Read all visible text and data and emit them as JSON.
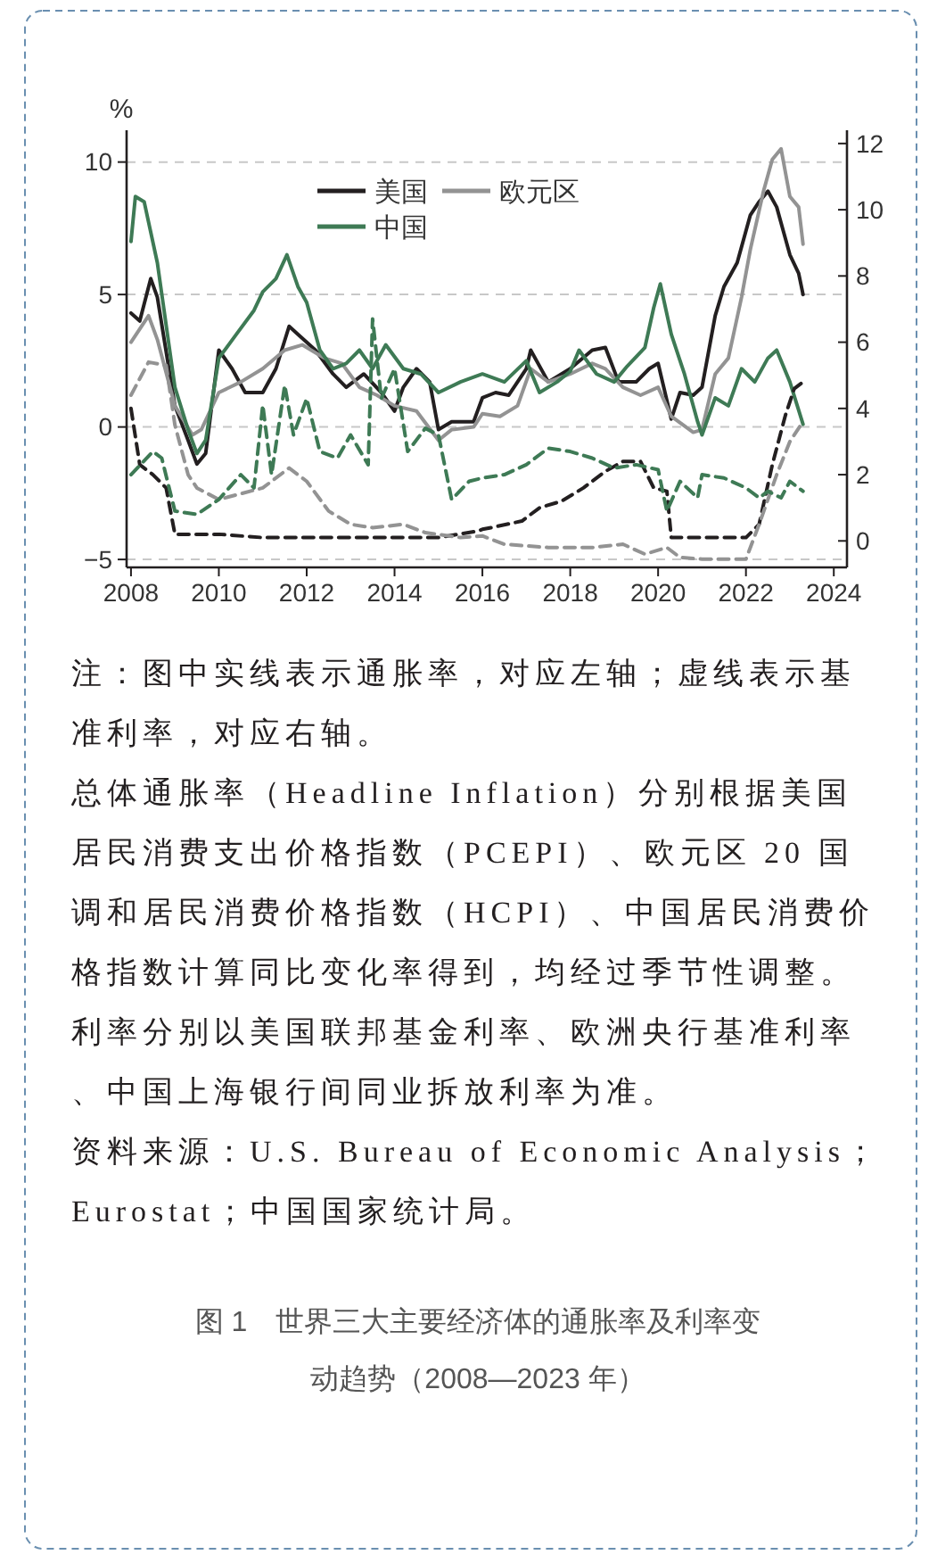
{
  "chart_data": {
    "type": "line",
    "title": "图 1　世界三大主要经济体的通胀率及利率变动趋势（2008—2023 年）",
    "ylabel": "%",
    "xlim": [
      2007.9,
      2024.3
    ],
    "xticks": [
      2008,
      2010,
      2012,
      2014,
      2016,
      2018,
      2020,
      2022,
      2024
    ],
    "ylim": [
      -5.3,
      11.2
    ],
    "yticks": [
      -5,
      0,
      5,
      10
    ],
    "y2lim": [
      -0.8,
      12.4
    ],
    "y2ticks": [
      0,
      2,
      4,
      6,
      8,
      10,
      12
    ],
    "grid": "y",
    "legend": "top",
    "line_style": "solid",
    "series": [
      {
        "name": "美国",
        "color": "#231f20",
        "x": [
          2008,
          2008.2,
          2008.45,
          2008.6,
          2009,
          2009.3,
          2009.5,
          2009.7,
          2010,
          2010.3,
          2010.6,
          2011,
          2011.3,
          2011.6,
          2011.8,
          2012.2,
          2012.6,
          2012.9,
          2013.3,
          2013.7,
          2014,
          2014.2,
          2014.5,
          2014.8,
          2015,
          2015.3,
          2015.8,
          2016,
          2016.3,
          2016.6,
          2017,
          2017.1,
          2017.5,
          2018,
          2018.5,
          2018.8,
          2019.1,
          2019.5,
          2019.8,
          2020,
          2020.3,
          2020.5,
          2020.8,
          2021,
          2021.3,
          2021.5,
          2021.8,
          2022.1,
          2022.3,
          2022.5,
          2022.7,
          2023,
          2023.2,
          2023.3
        ],
        "values": [
          4.3,
          4.0,
          5.6,
          4.9,
          0.8,
          -0.5,
          -1.4,
          -1.0,
          2.9,
          2.2,
          1.3,
          1.3,
          2.2,
          3.8,
          3.5,
          2.9,
          2.0,
          1.5,
          2.0,
          1.3,
          0.6,
          1.5,
          2.2,
          1.7,
          -0.1,
          0.2,
          0.2,
          1.1,
          1.3,
          1.2,
          2.2,
          2.9,
          1.7,
          2.2,
          2.9,
          3.0,
          1.7,
          1.7,
          2.2,
          2.4,
          0.3,
          1.3,
          1.2,
          1.5,
          4.2,
          5.3,
          6.2,
          8.0,
          8.5,
          8.9,
          8.3,
          6.5,
          5.8,
          5.0
        ]
      },
      {
        "name": "欧元区",
        "color": "#939393",
        "x": [
          2008,
          2008.4,
          2008.6,
          2009,
          2009.4,
          2009.6,
          2010,
          2010.5,
          2011,
          2011.5,
          2011.9,
          2012.4,
          2012.8,
          2013.2,
          2013.6,
          2014,
          2014.5,
          2015,
          2015.3,
          2015.8,
          2016,
          2016.4,
          2016.8,
          2017.1,
          2017.5,
          2018,
          2018.5,
          2018.8,
          2019.2,
          2019.6,
          2020,
          2020.3,
          2020.8,
          2021,
          2021.3,
          2021.6,
          2021.9,
          2022.1,
          2022.4,
          2022.6,
          2022.8,
          2023,
          2023.2,
          2023.3
        ],
        "values": [
          3.2,
          4.2,
          3.3,
          0.8,
          -0.3,
          -0.1,
          1.3,
          1.7,
          2.2,
          2.9,
          3.1,
          2.6,
          2.4,
          1.5,
          1.2,
          0.8,
          0.6,
          -0.5,
          -0.1,
          0.0,
          0.5,
          0.4,
          0.8,
          2.2,
          1.7,
          2.0,
          2.4,
          2.2,
          1.5,
          1.2,
          1.5,
          0.4,
          -0.2,
          -0.1,
          2.0,
          2.6,
          4.9,
          6.7,
          8.9,
          10.1,
          10.5,
          8.7,
          8.3,
          6.9
        ]
      },
      {
        "name": "中国",
        "color": "#3e7a55",
        "x": [
          2008,
          2008.1,
          2008.3,
          2008.6,
          2009,
          2009.3,
          2009.5,
          2009.7,
          2010,
          2010.4,
          2010.8,
          2011,
          2011.3,
          2011.55,
          2011.8,
          2012,
          2012.3,
          2012.6,
          2012.9,
          2013.2,
          2013.5,
          2013.8,
          2014.2,
          2014.6,
          2015,
          2015.5,
          2016,
          2016.5,
          2017,
          2017.3,
          2017.7,
          2018,
          2018.2,
          2018.6,
          2019,
          2019.3,
          2019.7,
          2019.9,
          2020.05,
          2020.3,
          2020.6,
          2020.9,
          2021,
          2021.3,
          2021.6,
          2021.9,
          2022.2,
          2022.5,
          2022.7,
          2023,
          2023.3
        ],
        "values": [
          7.0,
          8.7,
          8.5,
          6.2,
          1.5,
          -0.1,
          -1.0,
          -0.5,
          2.6,
          3.5,
          4.4,
          5.1,
          5.6,
          6.5,
          5.3,
          4.7,
          2.9,
          2.2,
          2.4,
          2.9,
          2.2,
          3.1,
          2.2,
          2.0,
          1.3,
          1.7,
          2.0,
          1.7,
          2.5,
          1.3,
          1.7,
          2.1,
          2.9,
          2.0,
          1.7,
          2.3,
          3.0,
          4.5,
          5.4,
          3.5,
          2.0,
          0.2,
          -0.3,
          1.1,
          0.8,
          2.2,
          1.7,
          2.6,
          2.9,
          1.7,
          0.1
        ]
      },
      {
        "color": "#231f20",
        "axis": "y2",
        "line_style": "dashed",
        "x": [
          2008,
          2008.2,
          2008.5,
          2008.8,
          2009,
          2010,
          2011,
          2012,
          2013,
          2014,
          2015,
          2015.9,
          2016,
          2016.2,
          2016.9,
          2017.3,
          2017.8,
          2018.3,
          2018.8,
          2019.2,
          2019.6,
          2019.9,
          2020.2,
          2020.3,
          2021,
          2022,
          2022.3,
          2022.6,
          2022.9,
          2023.1,
          2023.3
        ],
        "values": [
          4.0,
          2.3,
          2.0,
          1.6,
          0.2,
          0.2,
          0.1,
          0.1,
          0.1,
          0.1,
          0.1,
          0.3,
          0.35,
          0.4,
          0.6,
          1.0,
          1.2,
          1.6,
          2.1,
          2.4,
          2.4,
          1.6,
          1.5,
          0.1,
          0.1,
          0.1,
          0.5,
          2.3,
          3.8,
          4.6,
          4.8
        ]
      },
      {
        "color": "#939393",
        "axis": "y2",
        "line_style": "dashed",
        "x": [
          2008,
          2008.4,
          2008.8,
          2009,
          2009.3,
          2009.5,
          2010,
          2011,
          2011.6,
          2012,
          2012.5,
          2013,
          2013.5,
          2014.2,
          2014.7,
          2015.5,
          2016,
          2016.5,
          2017.5,
          2018.5,
          2019.2,
          2019.7,
          2020.2,
          2020.5,
          2021,
          2022,
          2022.3,
          2022.7,
          2023,
          2023.3
        ],
        "values": [
          4.4,
          5.4,
          5.3,
          3.5,
          2.0,
          1.6,
          1.25,
          1.6,
          2.2,
          1.8,
          0.9,
          0.5,
          0.4,
          0.5,
          0.25,
          0.1,
          0.15,
          -0.1,
          -0.2,
          -0.2,
          -0.1,
          -0.4,
          -0.2,
          -0.5,
          -0.55,
          -0.55,
          0.5,
          2.0,
          3.0,
          3.6
        ]
      },
      {
        "color": "#3e7a55",
        "axis": "y2",
        "line_style": "dashed",
        "x": [
          2008,
          2008.5,
          2008.7,
          2009,
          2009.5,
          2010,
          2010.5,
          2010.8,
          2011,
          2011.2,
          2011.5,
          2011.7,
          2012,
          2012.3,
          2012.7,
          2013,
          2013.4,
          2013.5,
          2013.7,
          2014,
          2014.3,
          2014.7,
          2015,
          2015.3,
          2015.7,
          2016,
          2016.5,
          2017,
          2017.5,
          2018,
          2018.5,
          2019,
          2019.5,
          2020,
          2020.2,
          2020.5,
          2020.9,
          2021,
          2021.5,
          2022,
          2022.3,
          2022.5,
          2022.8,
          2023,
          2023.3
        ],
        "values": [
          2.0,
          2.7,
          2.5,
          0.9,
          0.8,
          1.25,
          2.0,
          1.6,
          4.1,
          2.0,
          4.7,
          3.2,
          4.3,
          2.7,
          2.5,
          3.2,
          2.3,
          6.7,
          4.3,
          5.2,
          2.7,
          3.4,
          3.2,
          1.25,
          1.8,
          1.9,
          2.0,
          2.3,
          2.8,
          2.7,
          2.5,
          2.2,
          2.3,
          2.15,
          0.9,
          1.8,
          1.3,
          2.0,
          1.9,
          1.6,
          1.3,
          1.5,
          1.3,
          1.8,
          1.5
        ]
      }
    ],
    "annotations": [
      "注：图中实线表示通胀率，对应左轴；虚线表示基准利率，对应右轴。",
      "总体通胀率（Headline Inflation）分别根据美国居民消费支出价格指数（PCEPI）、欧元区 20 国调和居民消费价格指数（HCPI）、中国居民消费价格指数计算同比变化率得到，均经过季节性调整。利率分别以美国联邦基金利率、欧洲央行基准利率、中国上海银行间同业拆放利率为准。",
      "资料来源：U.S. Bureau of Economic Analysis；Eurostat；中国国家统计局。"
    ]
  }
}
